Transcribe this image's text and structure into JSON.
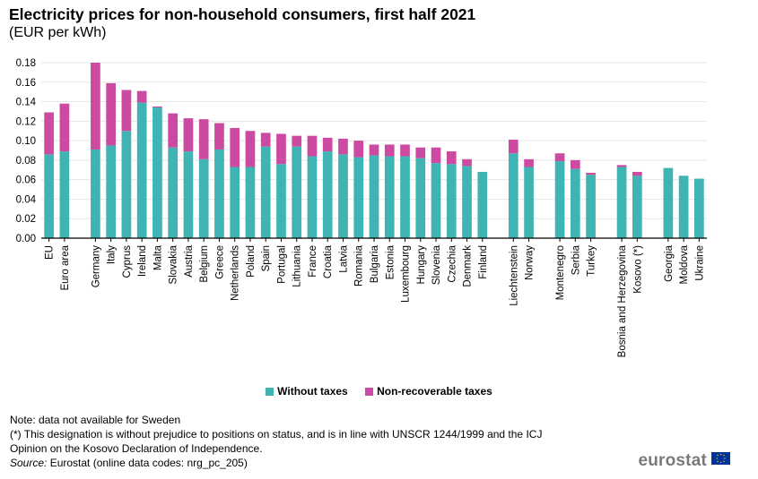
{
  "header": {
    "title": "Electricity prices for non-household consumers, first half 2021",
    "subtitle": "(EUR per kWh)"
  },
  "colors": {
    "without_taxes": "#3fb4b3",
    "non_recoverable_taxes": "#cc4aa1",
    "grid": "#e6e6e6",
    "axis": "#000000"
  },
  "chart_data": {
    "type": "bar",
    "stacked": true,
    "title": "Electricity prices for non-household consumers, first half 2021",
    "ylabel": "(EUR per kWh)",
    "ylim": [
      0,
      0.18
    ],
    "yticks": [
      "0.00",
      "0.02",
      "0.04",
      "0.06",
      "0.08",
      "0.10",
      "0.12",
      "0.14",
      "0.16",
      "0.18"
    ],
    "grid": true,
    "legend_position": "bottom",
    "groups": [
      [
        "EU",
        "Euro area"
      ],
      [
        "Germany",
        "Italy",
        "Cyprus",
        "Ireland",
        "Malta",
        "Slovakia",
        "Austria",
        "Belgium",
        "Greece",
        "Netherlands",
        "Poland",
        "Spain",
        "Portugal",
        "Lithuania",
        "France",
        "Croatia",
        "Latvia",
        "Romania",
        "Bulgaria",
        "Estonia",
        "Luxembourg",
        "Hungary",
        "Slovenia",
        "Czechia",
        "Denmark",
        "Finland"
      ],
      [
        "Liechtenstein",
        "Norway"
      ],
      [
        "Montenegro",
        "Serbia",
        "Turkey"
      ],
      [
        "Bosnia and Herzegovina",
        "Kosovo (*)"
      ],
      [
        "Georgia",
        "Moldova",
        "Ukraine"
      ]
    ],
    "categories": [
      "EU",
      "Euro area",
      "Germany",
      "Italy",
      "Cyprus",
      "Ireland",
      "Malta",
      "Slovakia",
      "Austria",
      "Belgium",
      "Greece",
      "Netherlands",
      "Poland",
      "Spain",
      "Portugal",
      "Lithuania",
      "France",
      "Croatia",
      "Latvia",
      "Romania",
      "Bulgaria",
      "Estonia",
      "Luxembourg",
      "Hungary",
      "Slovenia",
      "Czechia",
      "Denmark",
      "Finland",
      "Liechtenstein",
      "Norway",
      "Montenegro",
      "Serbia",
      "Turkey",
      "Bosnia and Herzegovina",
      "Kosovo (*)",
      "Georgia",
      "Moldova",
      "Ukraine"
    ],
    "series": [
      {
        "name": "Without taxes",
        "values": [
          0.086,
          0.089,
          0.091,
          0.095,
          0.11,
          0.139,
          0.134,
          0.093,
          0.089,
          0.081,
          0.091,
          0.073,
          0.073,
          0.094,
          0.076,
          0.094,
          0.084,
          0.089,
          0.086,
          0.083,
          0.085,
          0.084,
          0.084,
          0.082,
          0.077,
          0.076,
          0.074,
          0.068,
          0.087,
          0.073,
          0.079,
          0.071,
          0.065,
          0.073,
          0.064,
          0.072,
          0.064,
          0.061
        ]
      },
      {
        "name": "Non-recoverable taxes",
        "values": [
          0.043,
          0.049,
          0.089,
          0.064,
          0.042,
          0.012,
          0.001,
          0.035,
          0.034,
          0.041,
          0.027,
          0.04,
          0.037,
          0.014,
          0.031,
          0.011,
          0.021,
          0.014,
          0.016,
          0.017,
          0.011,
          0.012,
          0.012,
          0.011,
          0.016,
          0.013,
          0.007,
          0.0,
          0.014,
          0.008,
          0.008,
          0.009,
          0.002,
          0.002,
          0.004,
          0.0,
          0.0,
          0.0
        ]
      }
    ]
  },
  "legend": {
    "without_taxes": "Without taxes",
    "non_recoverable_taxes": "Non-recoverable taxes"
  },
  "notes": {
    "line1": "Note: data not available for Sweden",
    "line2": "(*) This designation is without prejudice to positions on status, and is in line with UNSCR 1244/1999 and the ICJ",
    "line3": "Opinion on the Kosovo Declaration of Independence.",
    "source_label": "Source:",
    "source_text": " Eurostat (online data codes: nrg_pc_205)"
  },
  "branding": {
    "logo_text": "eurostat",
    "flag_icon": "eu-flag-icon"
  }
}
